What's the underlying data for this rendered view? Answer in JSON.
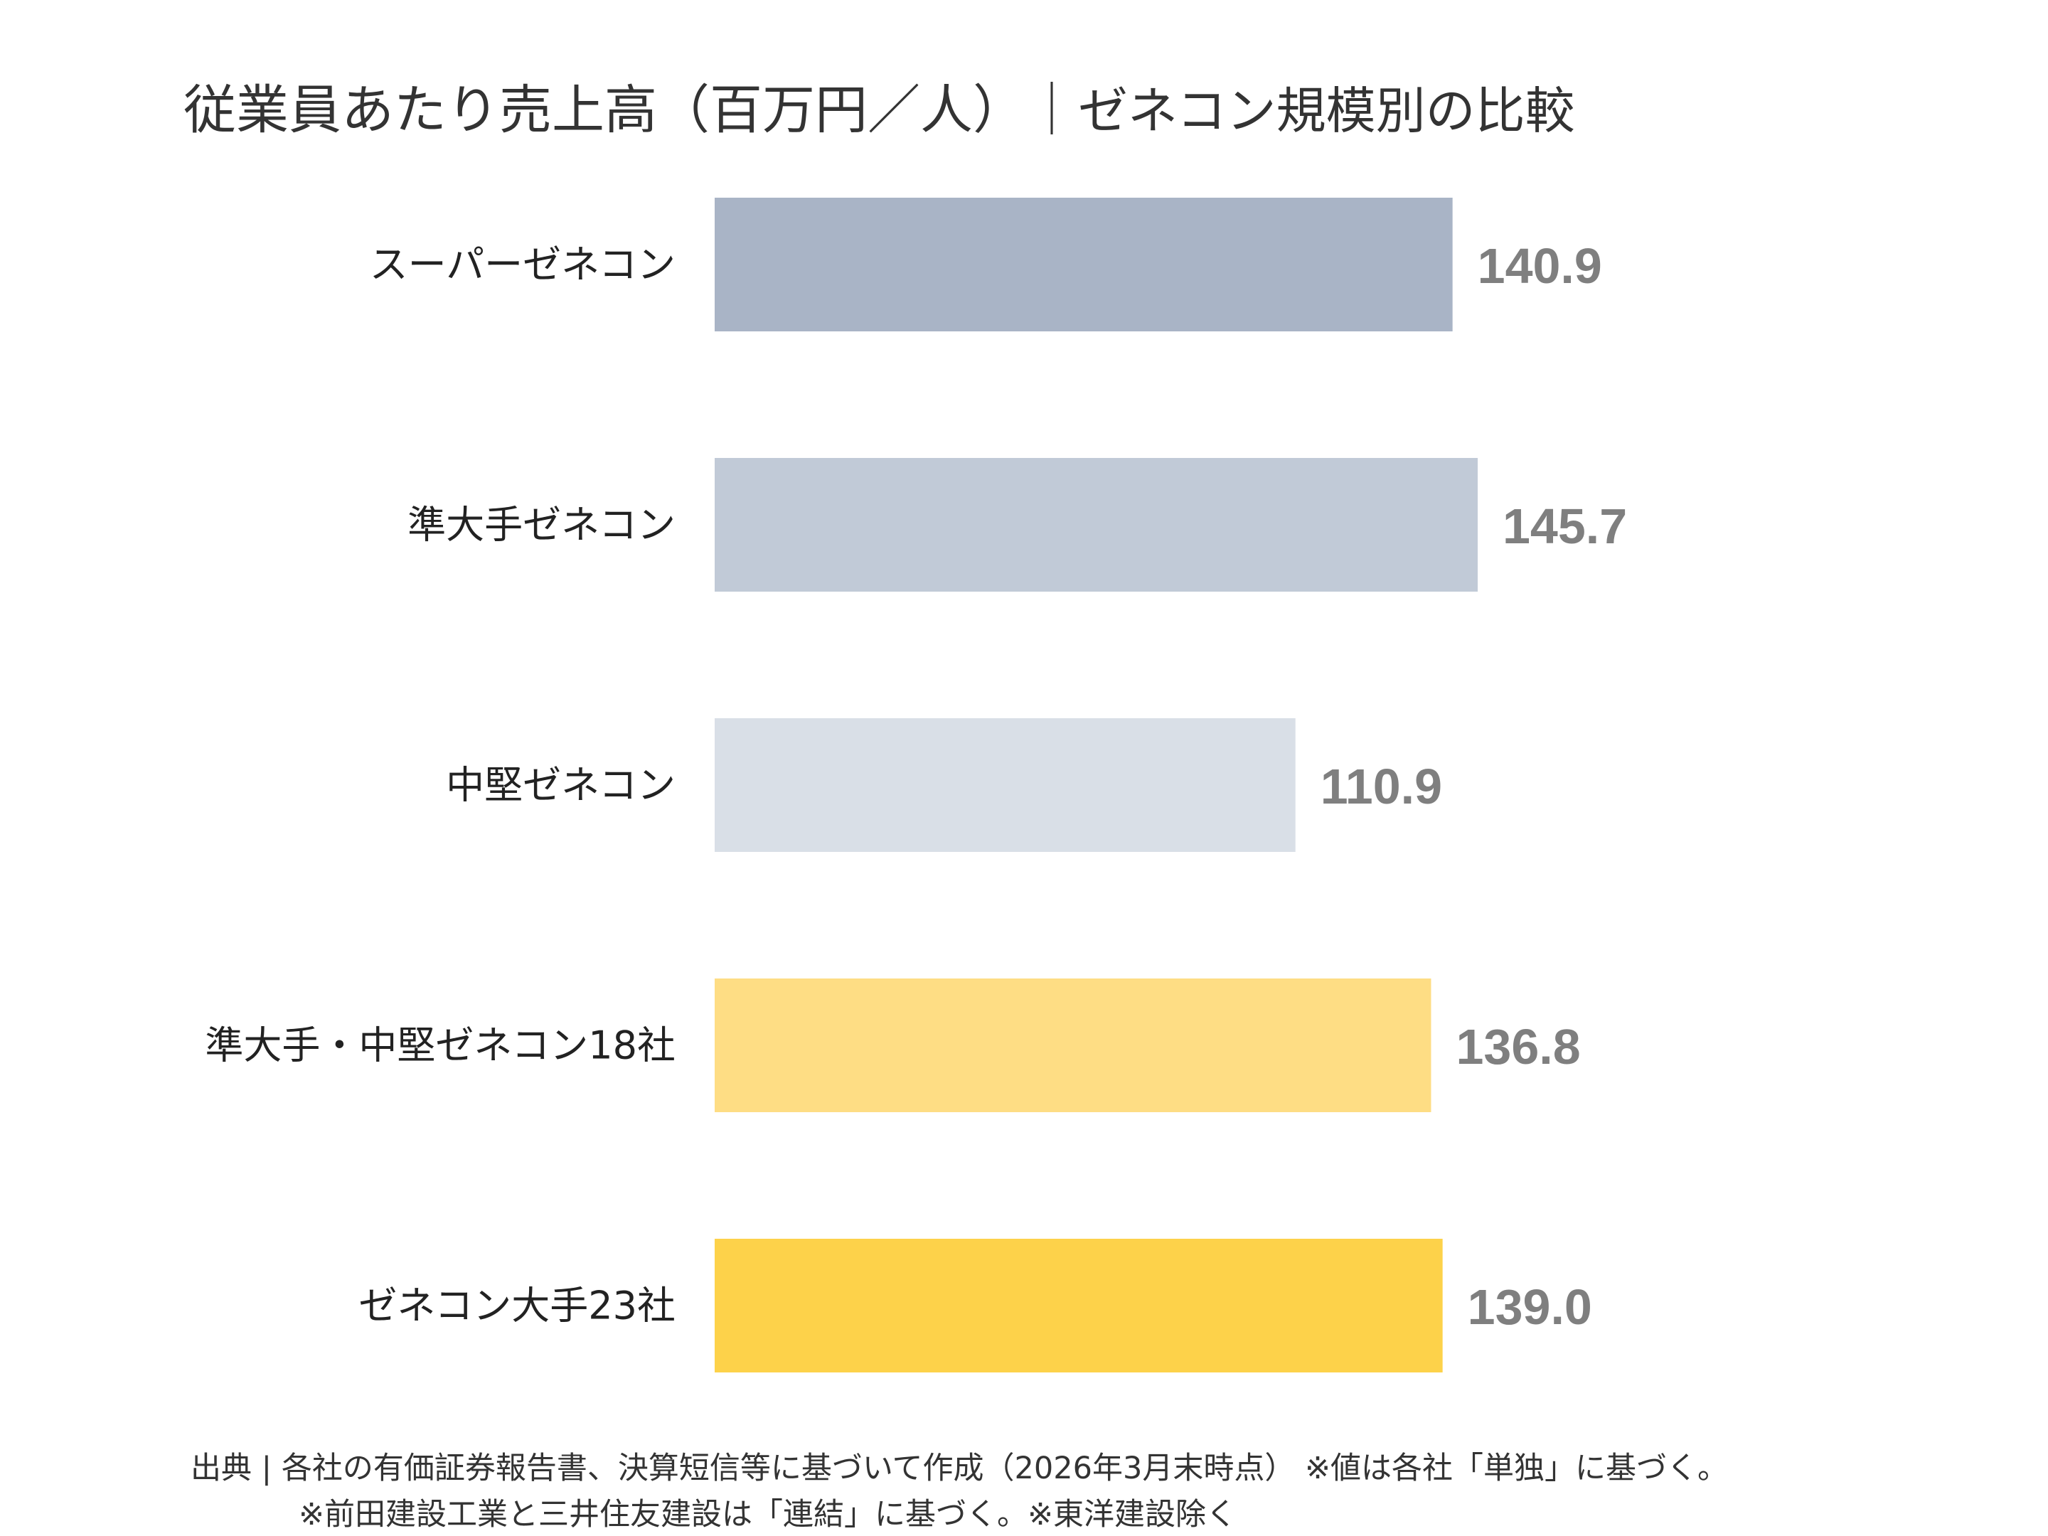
{
  "title": "従業員あたり売上高（百万円／人）",
  "title_separator": "｜",
  "subtitle": "ゼネコン規模別の比較",
  "chart_data": {
    "type": "bar",
    "orientation": "horizontal",
    "title": "従業員あたり売上高（百万円／人）｜ゼネコン規模別の比較",
    "categories": [
      "スーパーゼネコン",
      "準大手ゼネコン",
      "中堅ゼネコン",
      "準大手・中堅ゼネコン18社",
      "ゼネコン大手23社"
    ],
    "values": [
      140.9,
      145.7,
      110.9,
      136.8,
      139.0
    ],
    "value_labels": [
      "140.9",
      "145.7",
      "110.9",
      "136.8",
      "139.0"
    ],
    "bar_colors": [
      "#a9b4c6",
      "#c1cad7",
      "#d9dfe7",
      "#fedd84",
      "#fdd24a"
    ],
    "value_label_color": "#7f7f7f",
    "xlim": [
      0,
      145.7
    ],
    "grid": false,
    "legend": "none",
    "axes_visible": false
  },
  "footnotes": [
    "出典 | 各社の有価証券報告書、決算短信等に基づいて作成（2026年3月末時点） ※値は各社「単独」に基づく。",
    "※前田建設工業と三井住友建設は「連結」に基づく。※東洋建設除く"
  ]
}
